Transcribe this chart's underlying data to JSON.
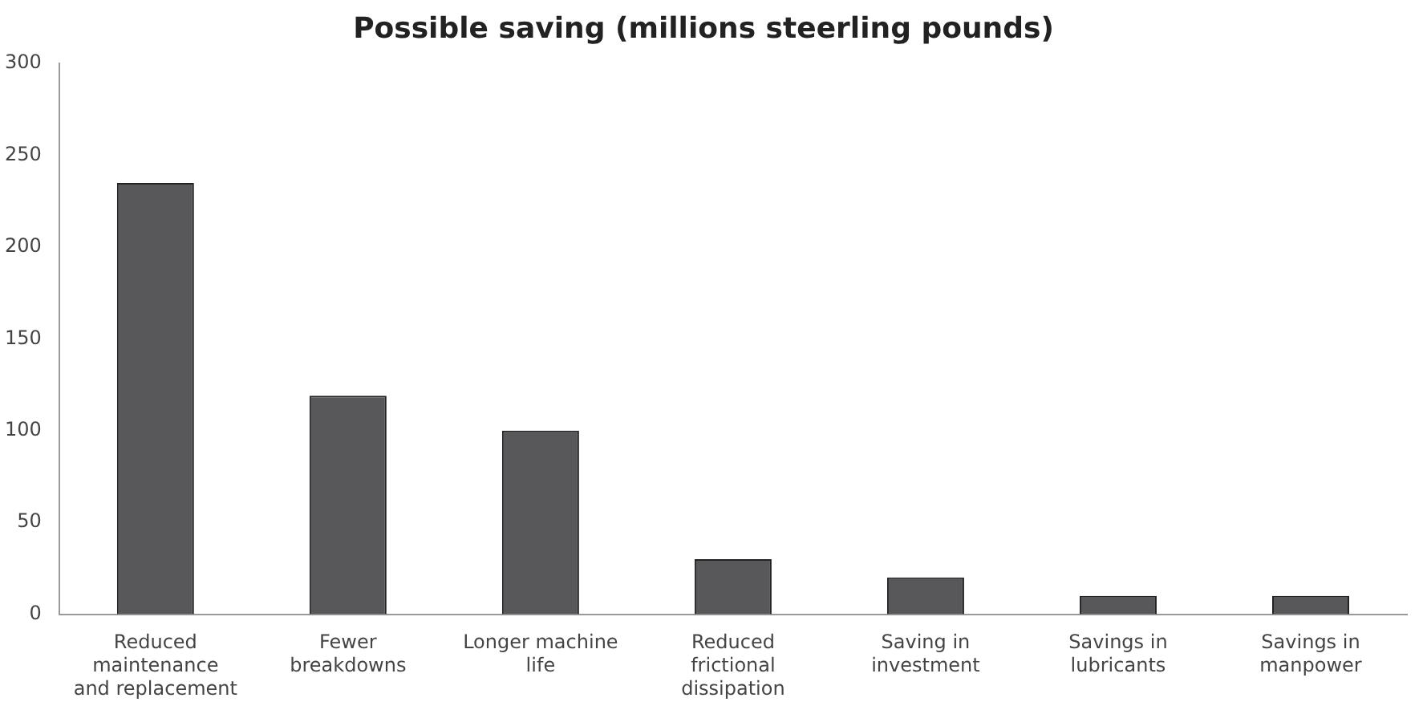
{
  "chart_data": {
    "type": "bar",
    "title": "Possible saving (millions steerling pounds)",
    "categories": [
      "Reduced maintenance and replacement",
      "Fewer breakdowns",
      "Longer machine life",
      "Reduced frictional dissipation",
      "Saving in investment",
      "Savings in lubricants",
      "Savings in manpower"
    ],
    "values": [
      235,
      119,
      100,
      30,
      20,
      10,
      10
    ],
    "color": "#58585a",
    "ylim": [
      0,
      300
    ],
    "yticks": [
      0,
      50,
      100,
      150,
      200,
      250,
      300
    ],
    "grid": false,
    "legend": false
  }
}
